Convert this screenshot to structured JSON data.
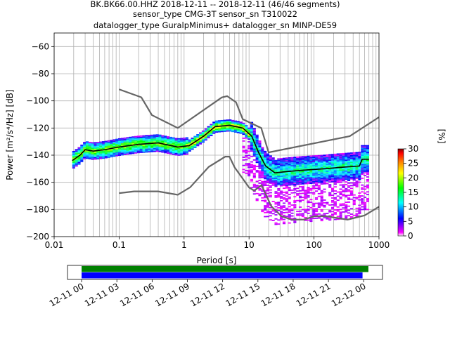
{
  "chart_data": [
    {
      "type": "heatmap",
      "title_lines": [
        "BK.BK66.00.HHZ   2018-12-11 -- 2018-12-11  (46/46 segments)",
        "sensor_type CMG-3T sensor_sn T310022",
        "datalogger_type GuralpMinimus+ datalogger_sn MINP-DE59"
      ],
      "xlabel": "Period [s]",
      "ylabel": "Power [m²/s⁴/Hz] [dB]",
      "x_scale": "log",
      "xlim": [
        0.01,
        1000
      ],
      "ylim": [
        -200,
        -50
      ],
      "x_ticks": [
        0.01,
        0.1,
        1,
        10,
        100,
        1000
      ],
      "x_tick_labels": [
        "0.01",
        "0.1",
        "1",
        "10",
        "100",
        "1000"
      ],
      "y_ticks": [
        -200,
        -180,
        -160,
        -140,
        -120,
        -100,
        -80,
        -60
      ],
      "y_tick_labels": [
        "−200",
        "−180",
        "−160",
        "−140",
        "−120",
        "−100",
        "−80",
        "−60"
      ],
      "grid": true,
      "noise_models": [
        {
          "name": "NHNM",
          "color": "#666666",
          "points": [
            [
              0.1,
              -91.5
            ],
            [
              0.22,
              -97.4
            ],
            [
              0.32,
              -110.5
            ],
            [
              0.8,
              -120
            ],
            [
              3.8,
              -97.5
            ],
            [
              4.6,
              -96.5
            ],
            [
              6.3,
              -101
            ],
            [
              8,
              -113.5
            ],
            [
              15.4,
              -120
            ],
            [
              20,
              -138
            ],
            [
              354.8,
              -126
            ],
            [
              1000,
              -112
            ]
          ]
        },
        {
          "name": "NLNM",
          "color": "#666666",
          "points": [
            [
              0.1,
              -168
            ],
            [
              0.17,
              -166.7
            ],
            [
              0.4,
              -166.7
            ],
            [
              0.8,
              -169.2
            ],
            [
              1.24,
              -163.7
            ],
            [
              2.4,
              -148.6
            ],
            [
              4.3,
              -141.1
            ],
            [
              5,
              -141.1
            ],
            [
              6,
              -149
            ],
            [
              10,
              -163.8
            ],
            [
              12,
              -166.2
            ],
            [
              15.6,
              -162.1
            ],
            [
              21.9,
              -177.5
            ],
            [
              31.6,
              -185
            ],
            [
              45,
              -187.5
            ],
            [
              70,
              -187.5
            ],
            [
              101,
              -185
            ],
            [
              154,
              -185
            ],
            [
              328,
              -187.5
            ],
            [
              600,
              -184.4
            ],
            [
              1000,
              -178
            ]
          ]
        }
      ],
      "mode_line": {
        "color": "#000000",
        "points": [
          [
            0.019,
            -144
          ],
          [
            0.025,
            -140
          ],
          [
            0.03,
            -136
          ],
          [
            0.04,
            -137
          ],
          [
            0.06,
            -136
          ],
          [
            0.1,
            -134
          ],
          [
            0.2,
            -132
          ],
          [
            0.4,
            -131
          ],
          [
            0.8,
            -134
          ],
          [
            1.2,
            -133
          ],
          [
            2,
            -126
          ],
          [
            3,
            -119
          ],
          [
            5,
            -118
          ],
          [
            8,
            -120
          ],
          [
            11,
            -126
          ],
          [
            14,
            -138
          ],
          [
            18,
            -148
          ],
          [
            25,
            -153
          ],
          [
            40,
            -152
          ],
          [
            70,
            -151
          ],
          [
            150,
            -150
          ],
          [
            250,
            -149
          ],
          [
            500,
            -148
          ],
          [
            550,
            -143
          ],
          [
            700,
            -143
          ]
        ]
      },
      "colorbar": {
        "label": "[%]",
        "min": 0,
        "max": 30,
        "ticks": [
          0,
          5,
          10,
          15,
          20,
          25,
          30
        ],
        "colors": [
          "#ffffff",
          "#ff00ff",
          "#0000ff",
          "#00ffff",
          "#00ff00",
          "#ffff00",
          "#ff8000",
          "#ff0000",
          "#800000"
        ]
      },
      "heat_clusters": [
        {
          "x0": 0.019,
          "x1": 0.03,
          "y0": -146,
          "y1": -136,
          "percent": 20
        },
        {
          "x0": 0.03,
          "x1": 0.1,
          "y0": -140,
          "y1": -129,
          "percent": 18
        },
        {
          "x0": 0.1,
          "x1": 0.5,
          "y0": -138,
          "y1": -127,
          "percent": 15
        },
        {
          "x0": 0.5,
          "x1": 1.5,
          "y0": -136,
          "y1": -130,
          "percent": 22
        },
        {
          "x0": 1.5,
          "x1": 4,
          "y0": -132,
          "y1": -117,
          "percent": 20
        },
        {
          "x0": 4,
          "x1": 10,
          "y0": -122,
          "y1": -116,
          "percent": 18
        },
        {
          "x0": 10,
          "x1": 15,
          "y0": -145,
          "y1": -120,
          "percent": 12
        },
        {
          "x0": 15,
          "x1": 30,
          "y0": -160,
          "y1": -140,
          "percent": 12
        },
        {
          "x0": 30,
          "x1": 100,
          "y0": -162,
          "y1": -145,
          "percent": 10
        },
        {
          "x0": 100,
          "x1": 700,
          "y0": -155,
          "y1": -140,
          "percent": 8
        },
        {
          "x0": 8,
          "x1": 700,
          "y0": -145,
          "y1": -115,
          "percent": 2
        }
      ]
    },
    {
      "type": "timeline",
      "tick_labels": [
        "12-11 00",
        "12-11 03",
        "12-11 06",
        "12-11 09",
        "12-11 12",
        "12-11 15",
        "12-11 18",
        "12-11 21",
        "12-12 00"
      ],
      "tick_hours": [
        0,
        3,
        6,
        9,
        12,
        15,
        18,
        21,
        24
      ],
      "xlim_hours": [
        -1.2,
        25.6
      ],
      "bars": [
        {
          "color": "#008000",
          "start_hour": 0,
          "end_hour": 24.4
        },
        {
          "color": "#0000ff",
          "start_hour": 0,
          "end_hour": 23.9
        }
      ]
    }
  ]
}
